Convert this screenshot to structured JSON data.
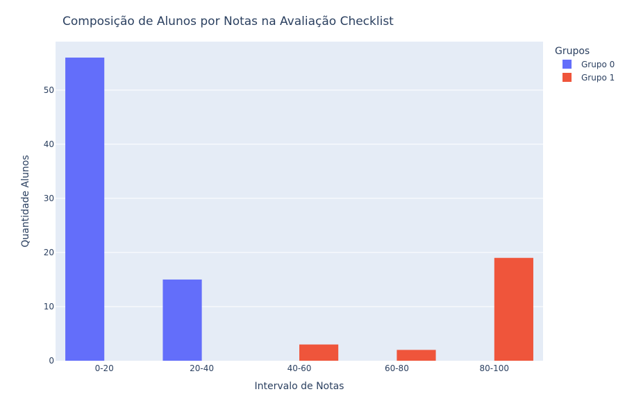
{
  "chart_data": {
    "type": "bar",
    "title": "Composição de Alunos por Notas na Avaliação Checklist",
    "xlabel": "Intervalo de Notas",
    "ylabel": "Quantidade Alunos",
    "categories": [
      "0-20",
      "20-40",
      "40-60",
      "60-80",
      "80-100"
    ],
    "series": [
      {
        "name": "Grupo 0",
        "color": "#636efa",
        "values": [
          56,
          15,
          null,
          null,
          null
        ]
      },
      {
        "name": "Grupo 1",
        "color": "#ef553b",
        "values": [
          null,
          null,
          3,
          2,
          19
        ]
      }
    ],
    "ylim": [
      0,
      58.95
    ],
    "yticks": [
      0,
      10,
      20,
      30,
      40,
      50
    ],
    "grid": true,
    "legend": {
      "title": "Grupos",
      "position": "top-right"
    },
    "colors": {
      "plot_background": "#e5ecf6",
      "grid": "#ffffff",
      "text": "#2a3f5f"
    }
  }
}
